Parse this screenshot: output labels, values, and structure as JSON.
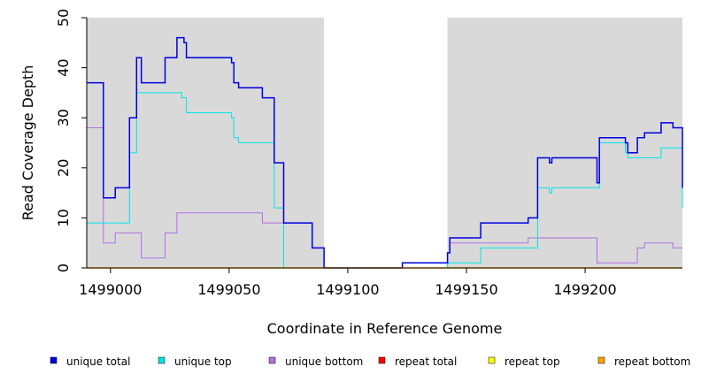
{
  "chart_data": {
    "type": "line",
    "title": "",
    "xlabel": "Coordinate in Reference Genome",
    "ylabel": "Read Coverage Depth",
    "xlim": [
      1498990,
      1499241
    ],
    "ylim": [
      0,
      50
    ],
    "x_ticks": [
      1499000,
      1499050,
      1499100,
      1499150,
      1499200
    ],
    "y_ticks": [
      0,
      10,
      20,
      30,
      40,
      50
    ],
    "background_color": "#d9d9d9",
    "highlight_region": {
      "x_start": 1499090,
      "x_end": 1499142,
      "color": "#ffffff"
    },
    "series": [
      {
        "name": "unique total",
        "color": "#0000e0",
        "points": [
          [
            1498990,
            37
          ],
          [
            1498997,
            37
          ],
          [
            1498997,
            14
          ],
          [
            1499002,
            14
          ],
          [
            1499002,
            16
          ],
          [
            1499008,
            16
          ],
          [
            1499008,
            30
          ],
          [
            1499011,
            30
          ],
          [
            1499011,
            42
          ],
          [
            1499013,
            42
          ],
          [
            1499013,
            37
          ],
          [
            1499023,
            37
          ],
          [
            1499023,
            42
          ],
          [
            1499028,
            42
          ],
          [
            1499028,
            46
          ],
          [
            1499031,
            46
          ],
          [
            1499031,
            45
          ],
          [
            1499032,
            45
          ],
          [
            1499032,
            42
          ],
          [
            1499051,
            42
          ],
          [
            1499051,
            41
          ],
          [
            1499052,
            41
          ],
          [
            1499052,
            37
          ],
          [
            1499054,
            37
          ],
          [
            1499054,
            36
          ],
          [
            1499064,
            36
          ],
          [
            1499064,
            34
          ],
          [
            1499069,
            34
          ],
          [
            1499069,
            21
          ],
          [
            1499073,
            21
          ],
          [
            1499073,
            9
          ],
          [
            1499085,
            9
          ],
          [
            1499085,
            4
          ],
          [
            1499090,
            4
          ],
          [
            1499090,
            0
          ],
          [
            1499123,
            0
          ],
          [
            1499123,
            1
          ],
          [
            1499142,
            1
          ],
          [
            1499142,
            3
          ],
          [
            1499143,
            3
          ],
          [
            1499143,
            6
          ],
          [
            1499156,
            6
          ],
          [
            1499156,
            9
          ],
          [
            1499176,
            9
          ],
          [
            1499176,
            10
          ],
          [
            1499180,
            10
          ],
          [
            1499180,
            22
          ],
          [
            1499185,
            22
          ],
          [
            1499185,
            21
          ],
          [
            1499186,
            21
          ],
          [
            1499186,
            22
          ],
          [
            1499205,
            22
          ],
          [
            1499205,
            17
          ],
          [
            1499206,
            17
          ],
          [
            1499206,
            26
          ],
          [
            1499217,
            26
          ],
          [
            1499217,
            25
          ],
          [
            1499218,
            25
          ],
          [
            1499218,
            23
          ],
          [
            1499222,
            23
          ],
          [
            1499222,
            26
          ],
          [
            1499225,
            26
          ],
          [
            1499225,
            27
          ],
          [
            1499232,
            27
          ],
          [
            1499232,
            29
          ],
          [
            1499237,
            29
          ],
          [
            1499237,
            28
          ],
          [
            1499241,
            28
          ],
          [
            1499241,
            16
          ],
          [
            1499242,
            16
          ]
        ]
      },
      {
        "name": "unique top",
        "color": "#00e5e5",
        "points": [
          [
            1498990,
            9
          ],
          [
            1499008,
            9
          ],
          [
            1499008,
            23
          ],
          [
            1499011,
            23
          ],
          [
            1499011,
            35
          ],
          [
            1499030,
            35
          ],
          [
            1499030,
            34
          ],
          [
            1499032,
            34
          ],
          [
            1499032,
            31
          ],
          [
            1499051,
            31
          ],
          [
            1499051,
            30
          ],
          [
            1499052,
            30
          ],
          [
            1499052,
            26
          ],
          [
            1499054,
            26
          ],
          [
            1499054,
            25
          ],
          [
            1499069,
            25
          ],
          [
            1499069,
            12
          ],
          [
            1499073,
            12
          ],
          [
            1499073,
            0
          ],
          [
            1499142,
            0
          ],
          [
            1499142,
            1
          ],
          [
            1499156,
            1
          ],
          [
            1499156,
            4
          ],
          [
            1499180,
            4
          ],
          [
            1499180,
            16
          ],
          [
            1499185,
            16
          ],
          [
            1499185,
            15
          ],
          [
            1499186,
            15
          ],
          [
            1499186,
            16
          ],
          [
            1499206,
            16
          ],
          [
            1499206,
            25
          ],
          [
            1499217,
            25
          ],
          [
            1499217,
            23
          ],
          [
            1499218,
            23
          ],
          [
            1499218,
            22
          ],
          [
            1499232,
            22
          ],
          [
            1499232,
            24
          ],
          [
            1499241,
            24
          ],
          [
            1499241,
            12
          ],
          [
            1499242,
            12
          ]
        ]
      },
      {
        "name": "unique bottom",
        "color": "#b070e0",
        "points": [
          [
            1498990,
            28
          ],
          [
            1498997,
            28
          ],
          [
            1498997,
            5
          ],
          [
            1499002,
            5
          ],
          [
            1499002,
            7
          ],
          [
            1499013,
            7
          ],
          [
            1499013,
            2
          ],
          [
            1499023,
            2
          ],
          [
            1499023,
            7
          ],
          [
            1499028,
            7
          ],
          [
            1499028,
            11
          ],
          [
            1499064,
            11
          ],
          [
            1499064,
            9
          ],
          [
            1499073,
            9
          ],
          [
            1499085,
            9
          ],
          [
            1499085,
            4
          ],
          [
            1499090,
            4
          ],
          [
            1499090,
            0
          ],
          [
            1499142,
            0
          ],
          [
            1499142,
            3
          ],
          [
            1499143,
            3
          ],
          [
            1499143,
            5
          ],
          [
            1499176,
            5
          ],
          [
            1499176,
            6
          ],
          [
            1499205,
            6
          ],
          [
            1499205,
            1
          ],
          [
            1499222,
            1
          ],
          [
            1499222,
            4
          ],
          [
            1499225,
            4
          ],
          [
            1499225,
            5
          ],
          [
            1499237,
            5
          ],
          [
            1499237,
            4
          ],
          [
            1499242,
            4
          ]
        ]
      },
      {
        "name": "repeat total",
        "color": "#ff0000",
        "points": [
          [
            1498990,
            0
          ],
          [
            1499242,
            0
          ]
        ]
      },
      {
        "name": "repeat top",
        "color": "#ffff00",
        "points": [
          [
            1498990,
            0
          ],
          [
            1499242,
            0
          ]
        ]
      },
      {
        "name": "repeat bottom",
        "color": "#ffa500",
        "points": [
          [
            1498990,
            0
          ],
          [
            1499242,
            0
          ]
        ]
      }
    ],
    "legend_position": "bottom"
  }
}
